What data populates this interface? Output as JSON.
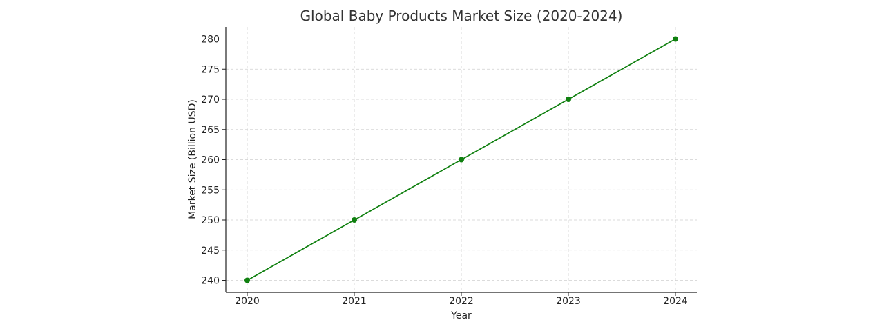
{
  "chart_data": {
    "type": "line",
    "title": "Global Baby Products Market Size (2020-2024)",
    "xlabel": "Year",
    "ylabel": "Market Size (Billion USD)",
    "x": [
      "2020",
      "2021",
      "2022",
      "2023",
      "2024"
    ],
    "series": [
      {
        "values": [
          240,
          250,
          260,
          270,
          280
        ],
        "color": "#108010",
        "marker": "circle"
      }
    ],
    "yticks": [
      240,
      245,
      250,
      255,
      260,
      265,
      270,
      275,
      280
    ],
    "ylim": [
      238,
      282
    ],
    "grid": true,
    "spines": "left-bottom"
  }
}
